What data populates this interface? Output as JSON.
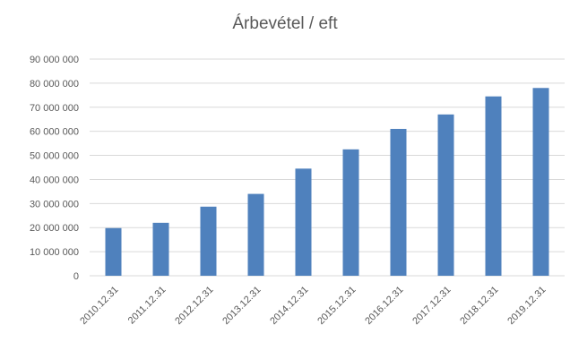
{
  "chart_data": {
    "type": "bar",
    "title": "Árbevétel / eft",
    "xlabel": "",
    "ylabel": "",
    "categories": [
      "2010.12.31",
      "2011.12.31",
      "2012.12.31",
      "2013.12.31",
      "2014.12.31",
      "2015.12.31",
      "2016.12.31",
      "2017.12.31",
      "2018.12.31",
      "2019.12.31"
    ],
    "values": [
      19800000,
      22000000,
      28700000,
      34000000,
      44500000,
      52500000,
      61000000,
      67000000,
      74500000,
      78000000
    ],
    "ylim": [
      0,
      90000000
    ],
    "yticks": [
      0,
      10000000,
      20000000,
      30000000,
      40000000,
      50000000,
      60000000,
      70000000,
      80000000,
      90000000
    ],
    "ytick_labels": [
      "0",
      "10 000 000",
      "20 000 000",
      "30 000 000",
      "40 000 000",
      "50 000 000",
      "60 000 000",
      "70 000 000",
      "80 000 000",
      "90 000 000"
    ],
    "grid": true,
    "legend": "none",
    "bar_color": "#4f81bd"
  }
}
